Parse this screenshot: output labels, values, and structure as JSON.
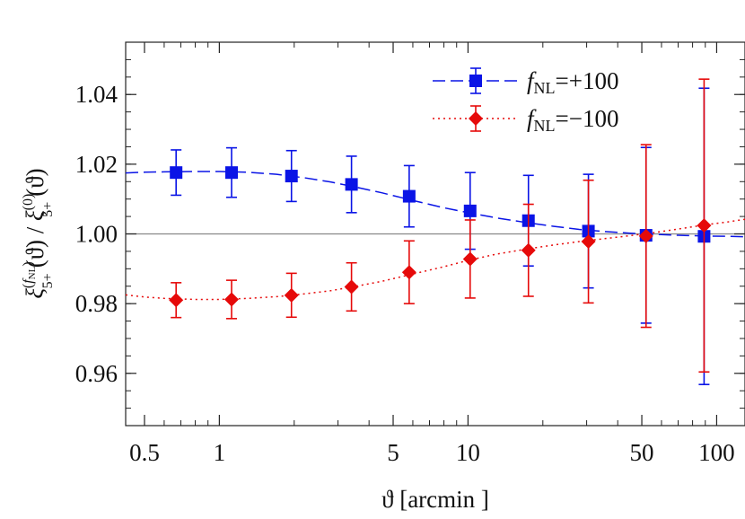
{
  "chart_data": {
    "type": "scatter",
    "title": "",
    "xlabel": "ϑ [arcmin ]",
    "ylabel_parts": {
      "xi_num": "ξ",
      "sub_num": "5+",
      "sup_num_f": "f",
      "sup_num_sub": "NL",
      "theta_num": "(ϑ)",
      "slash": " / ",
      "xi_den": "ξ",
      "sub_den": "5+",
      "sup_den": "(0)",
      "theta_den": "(ϑ)"
    },
    "x_scale": "log",
    "xlim": [
      0.42,
      130
    ],
    "ylim": [
      0.945,
      1.055
    ],
    "x_ticks": [
      {
        "value": 0.5,
        "label": "0.5"
      },
      {
        "value": 1,
        "label": "1"
      },
      {
        "value": 5,
        "label": "5"
      },
      {
        "value": 10,
        "label": "10"
      },
      {
        "value": 50,
        "label": "50"
      },
      {
        "value": 100,
        "label": "100"
      }
    ],
    "y_ticks": [
      {
        "value": 0.96,
        "label": "0.96"
      },
      {
        "value": 0.98,
        "label": "0.98"
      },
      {
        "value": 1.0,
        "label": "1.00"
      },
      {
        "value": 1.02,
        "label": "1.02"
      },
      {
        "value": 1.04,
        "label": "1.04"
      }
    ],
    "reference_line": 1.0,
    "legend_position": "top-right",
    "series": [
      {
        "name": "fNL=+100",
        "legend_f": "f",
        "legend_sub": "NL",
        "legend_value": "=+100",
        "color": "#0a14e6",
        "marker": "square",
        "line_style": "dashed",
        "x": [
          0.67,
          1.12,
          1.95,
          3.4,
          5.8,
          10.2,
          17.5,
          30.5,
          52,
          89
        ],
        "y": [
          1.0176,
          1.0176,
          1.0166,
          1.0142,
          1.0108,
          1.0066,
          1.0038,
          1.0008,
          0.9996,
          0.9993
        ],
        "err": [
          0.0065,
          0.0071,
          0.0073,
          0.0081,
          0.0088,
          0.011,
          0.013,
          0.0163,
          0.0252,
          0.0425
        ],
        "curve_x": [
          0.42,
          0.5,
          0.6,
          0.8,
          1.0,
          1.3,
          1.7,
          2.2,
          2.8,
          3.5,
          4.5,
          6,
          8,
          10,
          13,
          17,
          22,
          28,
          35,
          45,
          55,
          70,
          90,
          110,
          130
        ],
        "curve_y": [
          1.0175,
          1.0177,
          1.0178,
          1.0179,
          1.0179,
          1.0177,
          1.0171,
          1.0161,
          1.0149,
          1.0135,
          1.0118,
          1.0096,
          1.0075,
          1.0061,
          1.0046,
          1.0033,
          1.0022,
          1.0013,
          1.0007,
          1.0002,
          0.9999,
          0.9996,
          0.9994,
          0.9993,
          0.9992
        ]
      },
      {
        "name": "fNL=-100",
        "legend_f": "f",
        "legend_sub": "NL",
        "legend_value": "=−100",
        "color": "#e60a0a",
        "marker": "diamond",
        "line_style": "dotted",
        "x": [
          0.67,
          1.12,
          1.95,
          3.4,
          5.8,
          10.2,
          17.5,
          30.5,
          52,
          89
        ],
        "y": [
          0.981,
          0.9812,
          0.9824,
          0.9848,
          0.989,
          0.9928,
          0.9953,
          0.9978,
          0.9994,
          1.0024
        ],
        "err": [
          0.005,
          0.0055,
          0.0063,
          0.0069,
          0.009,
          0.0112,
          0.0132,
          0.0176,
          0.0262,
          0.042
        ],
        "curve_x": [
          0.42,
          0.5,
          0.6,
          0.8,
          1.0,
          1.3,
          1.7,
          2.2,
          2.8,
          3.5,
          4.5,
          6,
          8,
          10,
          13,
          17,
          22,
          28,
          35,
          45,
          55,
          70,
          90,
          110,
          130
        ],
        "curve_y": [
          0.9825,
          0.9819,
          0.9815,
          0.9812,
          0.9812,
          0.9815,
          0.982,
          0.9828,
          0.9837,
          0.9849,
          0.9864,
          0.9885,
          0.9906,
          0.9924,
          0.9942,
          0.9956,
          0.9968,
          0.9978,
          0.9986,
          0.9995,
          1.0003,
          1.0014,
          1.0026,
          1.0034,
          1.0042
        ]
      }
    ]
  }
}
